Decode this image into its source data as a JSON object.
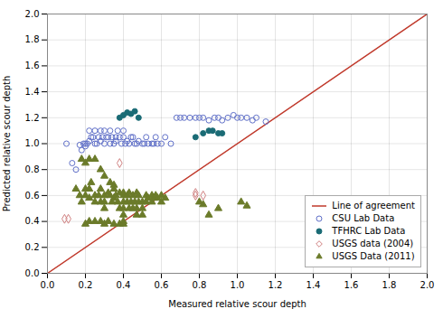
{
  "chart_data": {
    "type": "scatter",
    "xlabel": "Measured relative scour depth",
    "ylabel": "Predicted relative scour depth",
    "xlim": [
      0.0,
      2.0
    ],
    "ylim": [
      0.0,
      2.0
    ],
    "xticks": [
      {
        "value": 0.0,
        "label": "0.0"
      },
      0.2,
      0.4,
      0.6,
      0.8,
      {
        "value": 1.0,
        "label": "1.0"
      },
      1.2,
      1.4,
      1.6,
      1.8,
      {
        "value": 2.0,
        "label": "2.0"
      }
    ],
    "yticks": [
      {
        "value": 0.0,
        "label": "0.0"
      },
      0.2,
      0.4,
      0.6,
      0.8,
      {
        "value": 1.0,
        "label": "1.0"
      },
      1.2,
      1.4,
      1.6,
      1.8,
      {
        "value": 2.0,
        "label": "2.0"
      }
    ],
    "grid": true,
    "legend": "lower right",
    "series": [
      {
        "name": "Line of agreement",
        "type": "line",
        "color": "#c0392b",
        "line_style": "solid",
        "values": [
          [
            0.0,
            0.0
          ],
          [
            2.0,
            2.0
          ]
        ]
      },
      {
        "name": "CSU Lab Data",
        "type": "scatter",
        "color": "#6070c8",
        "marker": "open_circle",
        "values": [
          [
            0.1,
            1.0
          ],
          [
            0.13,
            0.85
          ],
          [
            0.15,
            0.8
          ],
          [
            0.17,
            0.99
          ],
          [
            0.18,
            0.95
          ],
          [
            0.19,
            1.0
          ],
          [
            0.2,
            1.0
          ],
          [
            0.2,
            0.98
          ],
          [
            0.21,
            1.0
          ],
          [
            0.22,
            1.02
          ],
          [
            0.22,
            1.1
          ],
          [
            0.23,
            1.05
          ],
          [
            0.24,
            1.05
          ],
          [
            0.25,
            1.0
          ],
          [
            0.25,
            1.1
          ],
          [
            0.26,
            1.0
          ],
          [
            0.27,
            1.05
          ],
          [
            0.28,
            1.02
          ],
          [
            0.28,
            1.1
          ],
          [
            0.29,
            1.05
          ],
          [
            0.3,
            1.0
          ],
          [
            0.3,
            1.1
          ],
          [
            0.31,
            1.05
          ],
          [
            0.32,
            1.05
          ],
          [
            0.33,
            1.0
          ],
          [
            0.33,
            1.1
          ],
          [
            0.34,
            1.05
          ],
          [
            0.35,
            1.0
          ],
          [
            0.36,
            1.05
          ],
          [
            0.36,
            1.02
          ],
          [
            0.37,
            1.1
          ],
          [
            0.38,
            1.05
          ],
          [
            0.39,
            1.0
          ],
          [
            0.4,
            1.05
          ],
          [
            0.4,
            1.1
          ],
          [
            0.41,
            1.0
          ],
          [
            0.42,
            1.02
          ],
          [
            0.43,
            1.0
          ],
          [
            0.44,
            1.05
          ],
          [
            0.45,
            1.05
          ],
          [
            0.46,
            1.0
          ],
          [
            0.47,
            1.0
          ],
          [
            0.48,
            1.02
          ],
          [
            0.5,
            1.0
          ],
          [
            0.51,
            1.0
          ],
          [
            0.52,
            1.05
          ],
          [
            0.53,
            1.0
          ],
          [
            0.55,
            1.0
          ],
          [
            0.56,
            1.0
          ],
          [
            0.57,
            1.05
          ],
          [
            0.58,
            1.0
          ],
          [
            0.6,
            1.0
          ],
          [
            0.62,
            1.05
          ],
          [
            0.65,
            1.0
          ],
          [
            0.68,
            1.2
          ],
          [
            0.7,
            1.2
          ],
          [
            0.72,
            1.2
          ],
          [
            0.75,
            1.2
          ],
          [
            0.78,
            1.2
          ],
          [
            0.8,
            1.2
          ],
          [
            0.82,
            1.2
          ],
          [
            0.85,
            1.18
          ],
          [
            0.88,
            1.2
          ],
          [
            0.9,
            1.2
          ],
          [
            0.92,
            1.18
          ],
          [
            0.95,
            1.2
          ],
          [
            0.98,
            1.22
          ],
          [
            1.0,
            1.2
          ],
          [
            1.02,
            1.2
          ],
          [
            1.05,
            1.2
          ],
          [
            1.08,
            1.18
          ],
          [
            1.1,
            1.2
          ],
          [
            1.15,
            1.17
          ]
        ]
      },
      {
        "name": "TFHRC Lab Data",
        "type": "scatter",
        "color": "#1a6b75",
        "marker": "circle",
        "values": [
          [
            0.38,
            1.2
          ],
          [
            0.4,
            1.22
          ],
          [
            0.42,
            1.24
          ],
          [
            0.44,
            1.23
          ],
          [
            0.46,
            1.25
          ],
          [
            0.48,
            1.2
          ],
          [
            0.78,
            1.05
          ],
          [
            0.82,
            1.08
          ],
          [
            0.85,
            1.1
          ],
          [
            0.87,
            1.1
          ],
          [
            0.9,
            1.08
          ],
          [
            0.92,
            1.08
          ]
        ]
      },
      {
        "name": "USGS data (2004)",
        "type": "scatter",
        "color": "#d08080",
        "marker": "open_diamond",
        "values": [
          [
            0.09,
            0.42
          ],
          [
            0.11,
            0.42
          ],
          [
            0.38,
            0.85
          ],
          [
            0.78,
            0.6
          ],
          [
            0.82,
            0.6
          ],
          [
            0.78,
            0.62
          ]
        ]
      },
      {
        "name": "USGS Data (2011)",
        "type": "scatter",
        "color": "#6b7b2a",
        "marker": "triangle",
        "values": [
          [
            0.15,
            0.65
          ],
          [
            0.17,
            0.6
          ],
          [
            0.18,
            0.55
          ],
          [
            0.2,
            0.65
          ],
          [
            0.2,
            0.6
          ],
          [
            0.22,
            0.58
          ],
          [
            0.22,
            0.65
          ],
          [
            0.23,
            0.7
          ],
          [
            0.25,
            0.55
          ],
          [
            0.25,
            0.6
          ],
          [
            0.27,
            0.6
          ],
          [
            0.28,
            0.55
          ],
          [
            0.28,
            0.65
          ],
          [
            0.3,
            0.6
          ],
          [
            0.3,
            0.55
          ],
          [
            0.3,
            0.5
          ],
          [
            0.32,
            0.62
          ],
          [
            0.33,
            0.6
          ],
          [
            0.34,
            0.55
          ],
          [
            0.35,
            0.65
          ],
          [
            0.35,
            0.58
          ],
          [
            0.36,
            0.6
          ],
          [
            0.37,
            0.55
          ],
          [
            0.38,
            0.62
          ],
          [
            0.38,
            0.5
          ],
          [
            0.4,
            0.6
          ],
          [
            0.4,
            0.55
          ],
          [
            0.4,
            0.62
          ],
          [
            0.4,
            0.5
          ],
          [
            0.4,
            0.45
          ],
          [
            0.4,
            0.4
          ],
          [
            0.42,
            0.6
          ],
          [
            0.42,
            0.55
          ],
          [
            0.43,
            0.62
          ],
          [
            0.43,
            0.5
          ],
          [
            0.44,
            0.55
          ],
          [
            0.45,
            0.6
          ],
          [
            0.45,
            0.5
          ],
          [
            0.46,
            0.55
          ],
          [
            0.47,
            0.62
          ],
          [
            0.47,
            0.5
          ],
          [
            0.47,
            0.45
          ],
          [
            0.48,
            0.6
          ],
          [
            0.48,
            0.55
          ],
          [
            0.5,
            0.55
          ],
          [
            0.5,
            0.5
          ],
          [
            0.5,
            0.45
          ],
          [
            0.52,
            0.6
          ],
          [
            0.52,
            0.55
          ],
          [
            0.53,
            0.58
          ],
          [
            0.55,
            0.6
          ],
          [
            0.55,
            0.55
          ],
          [
            0.56,
            0.58
          ],
          [
            0.57,
            0.6
          ],
          [
            0.58,
            0.58
          ],
          [
            0.6,
            0.6
          ],
          [
            0.6,
            0.55
          ],
          [
            0.62,
            0.58
          ],
          [
            0.18,
            0.88
          ],
          [
            0.2,
            0.85
          ],
          [
            0.22,
            0.88
          ],
          [
            0.8,
            0.55
          ],
          [
            0.82,
            0.53
          ],
          [
            0.85,
            0.45
          ],
          [
            0.9,
            0.5
          ],
          [
            1.02,
            0.55
          ],
          [
            1.05,
            0.52
          ],
          [
            0.25,
            0.88
          ],
          [
            0.28,
            0.8
          ],
          [
            0.3,
            0.75
          ],
          [
            0.33,
            0.7
          ],
          [
            0.35,
            0.68
          ],
          [
            0.2,
            0.38
          ],
          [
            0.22,
            0.4
          ],
          [
            0.25,
            0.4
          ],
          [
            0.28,
            0.4
          ],
          [
            0.3,
            0.38
          ],
          [
            0.32,
            0.4
          ],
          [
            0.35,
            0.38
          ],
          [
            0.38,
            0.38
          ],
          [
            0.4,
            0.38
          ]
        ]
      }
    ]
  }
}
